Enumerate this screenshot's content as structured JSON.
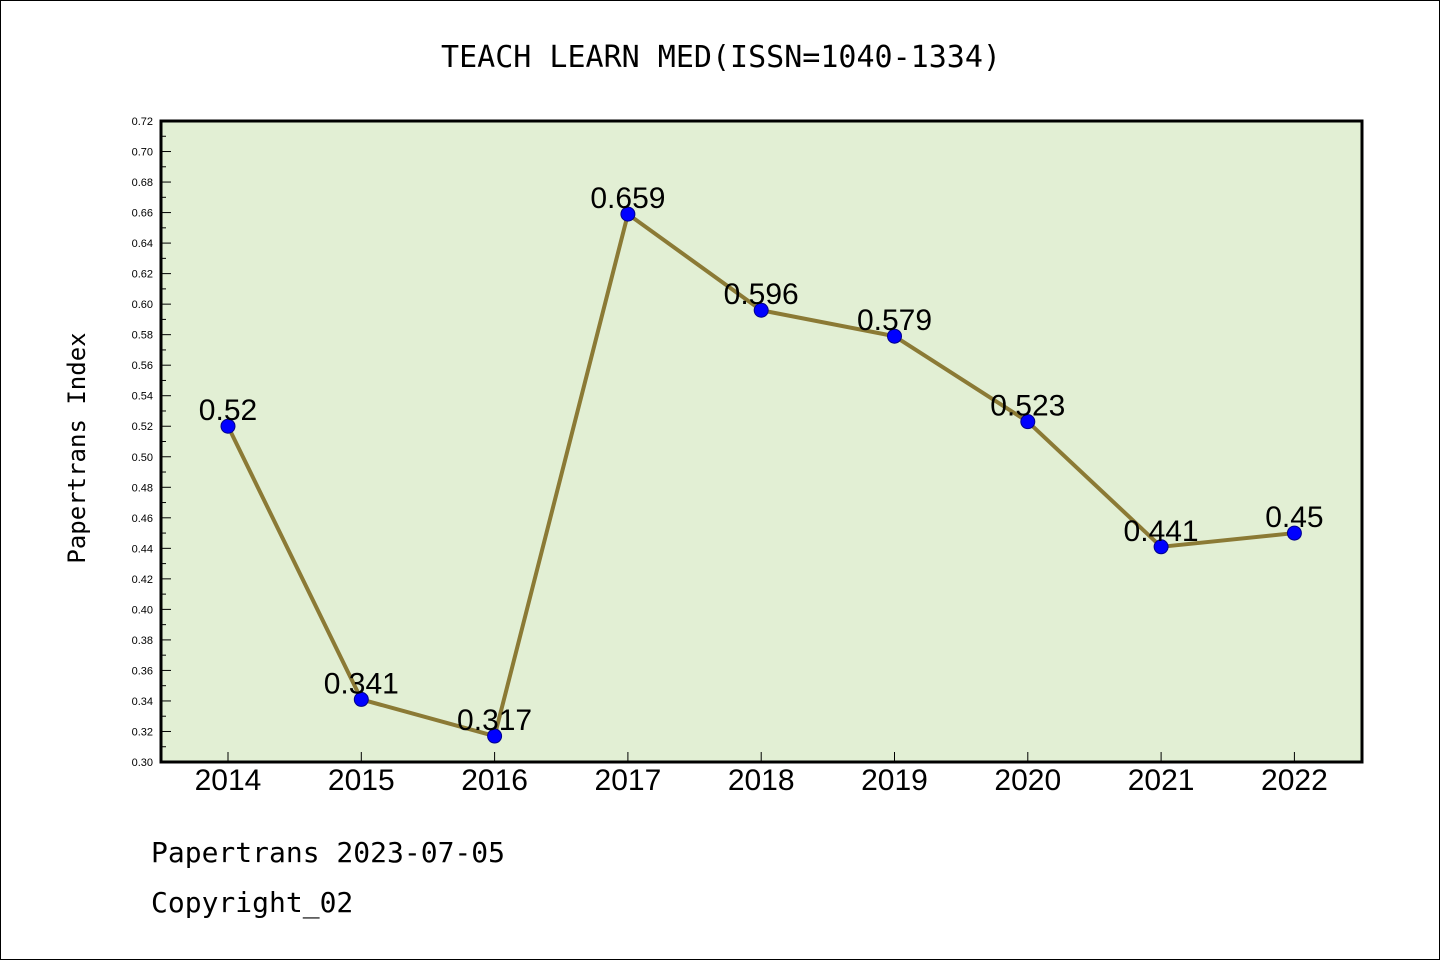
{
  "chart_data": {
    "type": "line",
    "title": "TEACH LEARN MED(ISSN=1040-1334)",
    "xlabel": "",
    "ylabel": "Papertrans Index",
    "x": [
      "2014",
      "2015",
      "2016",
      "2017",
      "2018",
      "2019",
      "2020",
      "2021",
      "2022"
    ],
    "series": [
      {
        "values": [
          0.52,
          0.341,
          0.317,
          0.659,
          0.596,
          0.579,
          0.523,
          0.441,
          0.45
        ],
        "labels": [
          "0.52",
          "0.341",
          "0.317",
          "0.659",
          "0.596",
          "0.579",
          "0.523",
          "0.441",
          "0.45"
        ]
      }
    ],
    "ylim": [
      0.3,
      0.72
    ],
    "yticks": [
      "0.30",
      "0.32",
      "0.34",
      "0.36",
      "0.38",
      "0.40",
      "0.42",
      "0.44",
      "0.46",
      "0.48",
      "0.50",
      "0.52",
      "0.54",
      "0.56",
      "0.58",
      "0.60",
      "0.62",
      "0.64",
      "0.66",
      "0.68",
      "0.70",
      "0.72"
    ],
    "grid": false,
    "colors": {
      "plot_background": "#e2efd4",
      "line": "#8b7a35",
      "marker": "#0000ff",
      "marker_edge": "#00008b"
    }
  },
  "footer": {
    "date_text": "Papertrans 2023-07-05",
    "copyright_text": "Copyright_02"
  }
}
